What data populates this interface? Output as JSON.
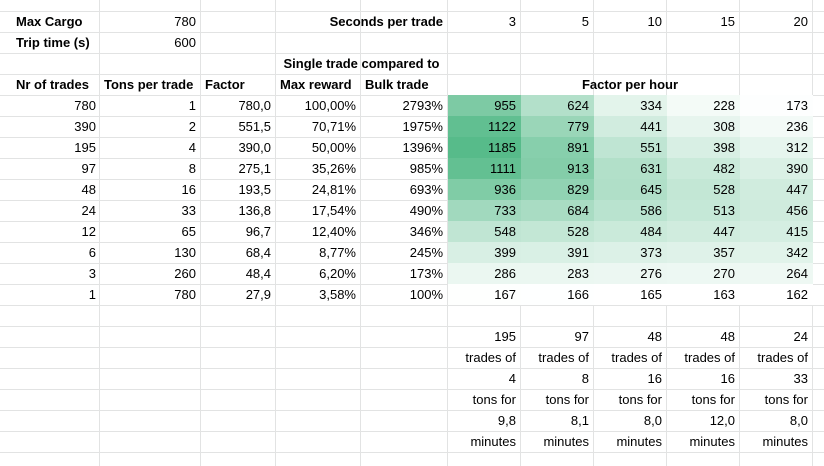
{
  "params": {
    "max_cargo_label": "Max Cargo",
    "max_cargo_value": "780",
    "trip_time_label": "Trip time (s)",
    "trip_time_value": "600",
    "seconds_per_trade_label": "Seconds per trade",
    "seconds": [
      "3",
      "5",
      "10",
      "15",
      "20"
    ]
  },
  "headers": {
    "single_trade_compared": "Single trade compared to",
    "nr_of_trades": "Nr of trades",
    "tons_per_trade": "Tons per trade",
    "factor": "Factor",
    "max_reward": "Max reward",
    "bulk_trade": "Bulk trade",
    "factor_per_hour": "Factor per hour"
  },
  "rows": [
    {
      "trades": "780",
      "tons": "1",
      "factor": "780,0",
      "max_reward": "100,00%",
      "bulk": "2793%",
      "fph": [
        "955",
        "624",
        "334",
        "228",
        "173"
      ]
    },
    {
      "trades": "390",
      "tons": "2",
      "factor": "551,5",
      "max_reward": "70,71%",
      "bulk": "1975%",
      "fph": [
        "1122",
        "779",
        "441",
        "308",
        "236"
      ]
    },
    {
      "trades": "195",
      "tons": "4",
      "factor": "390,0",
      "max_reward": "50,00%",
      "bulk": "1396%",
      "fph": [
        "1185",
        "891",
        "551",
        "398",
        "312"
      ]
    },
    {
      "trades": "97",
      "tons": "8",
      "factor": "275,1",
      "max_reward": "35,26%",
      "bulk": "985%",
      "fph": [
        "1111",
        "913",
        "631",
        "482",
        "390"
      ]
    },
    {
      "trades": "48",
      "tons": "16",
      "factor": "193,5",
      "max_reward": "24,81%",
      "bulk": "693%",
      "fph": [
        "936",
        "829",
        "645",
        "528",
        "447"
      ]
    },
    {
      "trades": "24",
      "tons": "33",
      "factor": "136,8",
      "max_reward": "17,54%",
      "bulk": "490%",
      "fph": [
        "733",
        "684",
        "586",
        "513",
        "456"
      ]
    },
    {
      "trades": "12",
      "tons": "65",
      "factor": "96,7",
      "max_reward": "12,40%",
      "bulk": "346%",
      "fph": [
        "548",
        "528",
        "484",
        "447",
        "415"
      ]
    },
    {
      "trades": "6",
      "tons": "130",
      "factor": "68,4",
      "max_reward": "8,77%",
      "bulk": "245%",
      "fph": [
        "399",
        "391",
        "373",
        "357",
        "342"
      ]
    },
    {
      "trades": "3",
      "tons": "260",
      "factor": "48,4",
      "max_reward": "6,20%",
      "bulk": "173%",
      "fph": [
        "286",
        "283",
        "276",
        "270",
        "264"
      ]
    },
    {
      "trades": "1",
      "tons": "780",
      "factor": "27,9",
      "max_reward": "3,58%",
      "bulk": "100%",
      "fph": [
        "167",
        "166",
        "165",
        "163",
        "162"
      ]
    }
  ],
  "heatmap_colors": {
    "low": "#ffffff",
    "high": "#57bb8a"
  },
  "summary": [
    {
      "trades": "195",
      "trades_of": "trades of",
      "tons": "4",
      "tons_for": "tons for",
      "minutes_value": "9,8",
      "minutes": "minutes"
    },
    {
      "trades": "97",
      "trades_of": "trades of",
      "tons": "8",
      "tons_for": "tons for",
      "minutes_value": "8,1",
      "minutes": "minutes"
    },
    {
      "trades": "48",
      "trades_of": "trades of",
      "tons": "16",
      "tons_for": "tons for",
      "minutes_value": "8,0",
      "minutes": "minutes"
    },
    {
      "trades": "48",
      "trades_of": "trades of",
      "tons": "16",
      "tons_for": "tons for",
      "minutes_value": "12,0",
      "minutes": "minutes"
    },
    {
      "trades": "24",
      "trades_of": "trades of",
      "tons": "33",
      "tons_for": "tons for",
      "minutes_value": "8,0",
      "minutes": "minutes"
    }
  ]
}
